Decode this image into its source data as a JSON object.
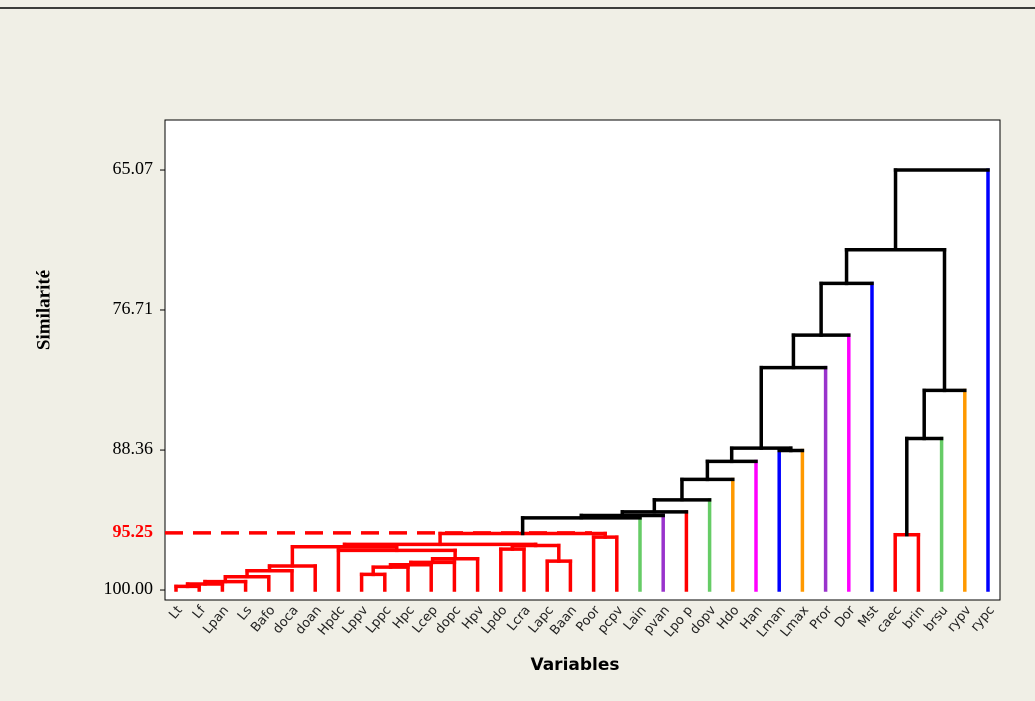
{
  "chart_data": {
    "type": "dendrogram",
    "y_label": "Similarité",
    "x_label": "Variables",
    "leaves": [
      "Lt",
      "Lf",
      "Lpan",
      "Ls",
      "Bafo",
      "doca",
      "doan",
      "Hpdc",
      "Lppv",
      "Lppc",
      "Hpc",
      "Lcep",
      "dopc",
      "Hpv",
      "Lpdo",
      "Lcra",
      "Lapc",
      "Baan",
      "Poor",
      "pcpv",
      "Lain",
      "pvan",
      "Lpo p",
      "dopv",
      "Hdo",
      "Han",
      "Lman",
      "Lmax",
      "Pror",
      "Dor",
      "Mst",
      "caec",
      "brin",
      "brsu",
      "rypv",
      "rypc"
    ],
    "leaf_colors": [
      "#ff0000",
      "#ff0000",
      "#ff0000",
      "#ff0000",
      "#ff0000",
      "#ff0000",
      "#ff0000",
      "#ff0000",
      "#ff0000",
      "#ff0000",
      "#ff0000",
      "#ff0000",
      "#ff0000",
      "#ff0000",
      "#ff0000",
      "#ff0000",
      "#ff0000",
      "#ff0000",
      "#ff0000",
      "#ff0000",
      "#66cc66",
      "#9933cc",
      "#ff0000",
      "#66cc66",
      "#ff9900",
      "#ff00ff",
      "#0000ff",
      "#ff9900",
      "#9933cc",
      "#ff00ff",
      "#0000ff",
      "#ff0000",
      "#ff0000",
      "#66cc66",
      "#ff9900",
      "#0000ff"
    ],
    "merges": [
      {
        "left": 0,
        "right": 1,
        "height": 99.7,
        "color": "#ff0000"
      },
      {
        "left": 36,
        "right": 2,
        "height": 99.5,
        "color": "#ff0000"
      },
      {
        "left": 37,
        "right": 3,
        "height": 99.3,
        "color": "#ff0000"
      },
      {
        "left": 38,
        "right": 4,
        "height": 98.9,
        "color": "#ff0000"
      },
      {
        "left": 39,
        "right": 5,
        "height": 98.4,
        "color": "#ff0000"
      },
      {
        "left": 40,
        "right": 6,
        "height": 98.0,
        "color": "#ff0000"
      },
      {
        "left": 8,
        "right": 9,
        "height": 98.7,
        "color": "#ff0000"
      },
      {
        "left": 42,
        "right": 10,
        "height": 98.1,
        "color": "#ff0000"
      },
      {
        "left": 43,
        "right": 11,
        "height": 97.9,
        "color": "#ff0000"
      },
      {
        "left": 44,
        "right": 12,
        "height": 97.7,
        "color": "#ff0000"
      },
      {
        "left": 45,
        "right": 13,
        "height": 97.4,
        "color": "#ff0000"
      },
      {
        "left": 7,
        "right": 46,
        "height": 96.7,
        "color": "#ff0000"
      },
      {
        "left": 41,
        "right": 47,
        "height": 96.4,
        "color": "#ff0000"
      },
      {
        "left": 14,
        "right": 15,
        "height": 96.6,
        "color": "#ff0000"
      },
      {
        "left": 16,
        "right": 17,
        "height": 97.6,
        "color": "#ff0000"
      },
      {
        "left": 49,
        "right": 50,
        "height": 96.3,
        "color": "#ff0000"
      },
      {
        "left": 48,
        "right": 51,
        "height": 96.2,
        "color": "#ff0000"
      },
      {
        "left": 18,
        "right": 19,
        "height": 95.6,
        "color": "#ff0000"
      },
      {
        "left": 52,
        "right": 53,
        "height": 95.3,
        "color": "#ff0000"
      },
      {
        "left": 54,
        "right": 20,
        "height": 94.0,
        "color": "#000000"
      },
      {
        "left": 55,
        "right": 21,
        "height": 93.8,
        "color": "#000000"
      },
      {
        "left": 56,
        "right": 22,
        "height": 93.5,
        "color": "#000000"
      },
      {
        "left": 57,
        "right": 23,
        "height": 92.5,
        "color": "#000000"
      },
      {
        "left": 58,
        "right": 24,
        "height": 90.8,
        "color": "#000000"
      },
      {
        "left": 59,
        "right": 25,
        "height": 89.3,
        "color": "#000000"
      },
      {
        "left": 26,
        "right": 27,
        "height": 88.4,
        "color": "#000000"
      },
      {
        "left": 60,
        "right": 61,
        "height": 88.2,
        "color": "#000000"
      },
      {
        "left": 62,
        "right": 28,
        "height": 81.5,
        "color": "#000000"
      },
      {
        "left": 63,
        "right": 29,
        "height": 78.8,
        "color": "#000000"
      },
      {
        "left": 64,
        "right": 30,
        "height": 74.5,
        "color": "#000000"
      },
      {
        "left": 31,
        "right": 32,
        "height": 95.4,
        "color": "#ff0000"
      },
      {
        "left": 66,
        "right": 33,
        "height": 87.4,
        "color": "#000000"
      },
      {
        "left": 67,
        "right": 34,
        "height": 83.4,
        "color": "#000000"
      },
      {
        "left": 65,
        "right": 68,
        "height": 71.7,
        "color": "#000000"
      },
      {
        "left": 69,
        "right": 35,
        "height": 65.07,
        "color": "#000000"
      }
    ],
    "ylim": [
      100.83,
      60.91
    ],
    "yticks": [
      65.07,
      76.71,
      88.36,
      {
        "value": 100,
        "label": "100.00"
      }
    ],
    "cut_line": {
      "value": 95.25,
      "color": "#ff0000"
    }
  }
}
